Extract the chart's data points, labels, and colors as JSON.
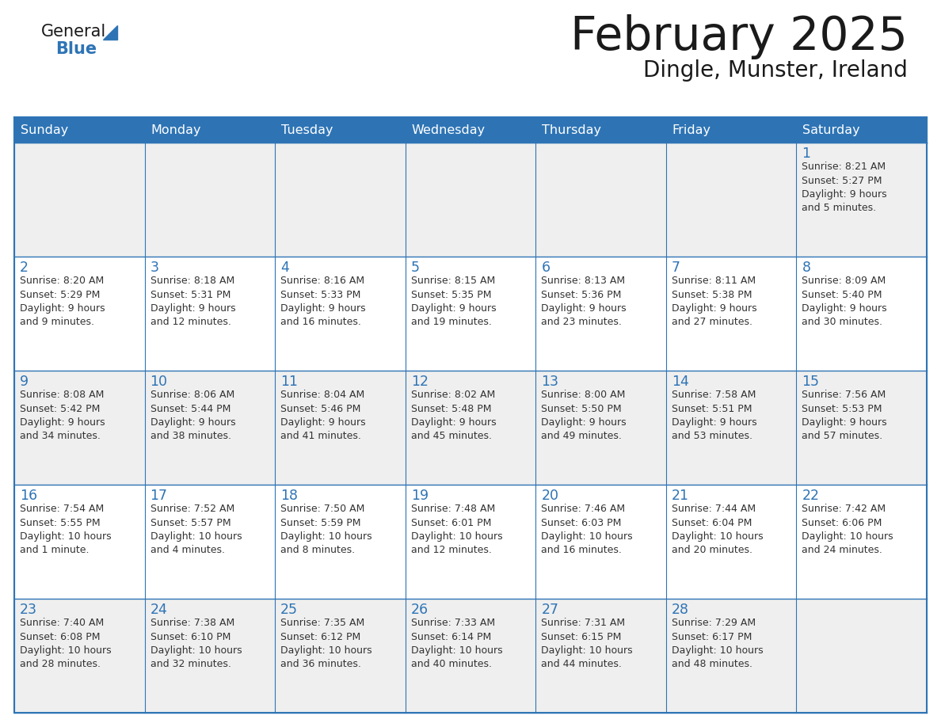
{
  "title": "February 2025",
  "subtitle": "Dingle, Munster, Ireland",
  "days_of_week": [
    "Sunday",
    "Monday",
    "Tuesday",
    "Wednesday",
    "Thursday",
    "Friday",
    "Saturday"
  ],
  "header_bg_color": "#2E74B5",
  "header_text_color": "#FFFFFF",
  "cell_bg_white": "#FFFFFF",
  "cell_bg_gray": "#F2F2F2",
  "grid_color": "#2E74B5",
  "title_color": "#1a1a1a",
  "subtitle_color": "#1a1a1a",
  "day_number_color": "#2E74B5",
  "cell_text_color": "#333333",
  "logo_general_color": "#1a1a1a",
  "logo_blue_color": "#2E74B5",
  "logo_triangle_color": "#2E74B5",
  "calendar_data": [
    [
      {
        "day": null,
        "text": ""
      },
      {
        "day": null,
        "text": ""
      },
      {
        "day": null,
        "text": ""
      },
      {
        "day": null,
        "text": ""
      },
      {
        "day": null,
        "text": ""
      },
      {
        "day": null,
        "text": ""
      },
      {
        "day": 1,
        "text": "Sunrise: 8:21 AM\nSunset: 5:27 PM\nDaylight: 9 hours\nand 5 minutes."
      }
    ],
    [
      {
        "day": 2,
        "text": "Sunrise: 8:20 AM\nSunset: 5:29 PM\nDaylight: 9 hours\nand 9 minutes."
      },
      {
        "day": 3,
        "text": "Sunrise: 8:18 AM\nSunset: 5:31 PM\nDaylight: 9 hours\nand 12 minutes."
      },
      {
        "day": 4,
        "text": "Sunrise: 8:16 AM\nSunset: 5:33 PM\nDaylight: 9 hours\nand 16 minutes."
      },
      {
        "day": 5,
        "text": "Sunrise: 8:15 AM\nSunset: 5:35 PM\nDaylight: 9 hours\nand 19 minutes."
      },
      {
        "day": 6,
        "text": "Sunrise: 8:13 AM\nSunset: 5:36 PM\nDaylight: 9 hours\nand 23 minutes."
      },
      {
        "day": 7,
        "text": "Sunrise: 8:11 AM\nSunset: 5:38 PM\nDaylight: 9 hours\nand 27 minutes."
      },
      {
        "day": 8,
        "text": "Sunrise: 8:09 AM\nSunset: 5:40 PM\nDaylight: 9 hours\nand 30 minutes."
      }
    ],
    [
      {
        "day": 9,
        "text": "Sunrise: 8:08 AM\nSunset: 5:42 PM\nDaylight: 9 hours\nand 34 minutes."
      },
      {
        "day": 10,
        "text": "Sunrise: 8:06 AM\nSunset: 5:44 PM\nDaylight: 9 hours\nand 38 minutes."
      },
      {
        "day": 11,
        "text": "Sunrise: 8:04 AM\nSunset: 5:46 PM\nDaylight: 9 hours\nand 41 minutes."
      },
      {
        "day": 12,
        "text": "Sunrise: 8:02 AM\nSunset: 5:48 PM\nDaylight: 9 hours\nand 45 minutes."
      },
      {
        "day": 13,
        "text": "Sunrise: 8:00 AM\nSunset: 5:50 PM\nDaylight: 9 hours\nand 49 minutes."
      },
      {
        "day": 14,
        "text": "Sunrise: 7:58 AM\nSunset: 5:51 PM\nDaylight: 9 hours\nand 53 minutes."
      },
      {
        "day": 15,
        "text": "Sunrise: 7:56 AM\nSunset: 5:53 PM\nDaylight: 9 hours\nand 57 minutes."
      }
    ],
    [
      {
        "day": 16,
        "text": "Sunrise: 7:54 AM\nSunset: 5:55 PM\nDaylight: 10 hours\nand 1 minute."
      },
      {
        "day": 17,
        "text": "Sunrise: 7:52 AM\nSunset: 5:57 PM\nDaylight: 10 hours\nand 4 minutes."
      },
      {
        "day": 18,
        "text": "Sunrise: 7:50 AM\nSunset: 5:59 PM\nDaylight: 10 hours\nand 8 minutes."
      },
      {
        "day": 19,
        "text": "Sunrise: 7:48 AM\nSunset: 6:01 PM\nDaylight: 10 hours\nand 12 minutes."
      },
      {
        "day": 20,
        "text": "Sunrise: 7:46 AM\nSunset: 6:03 PM\nDaylight: 10 hours\nand 16 minutes."
      },
      {
        "day": 21,
        "text": "Sunrise: 7:44 AM\nSunset: 6:04 PM\nDaylight: 10 hours\nand 20 minutes."
      },
      {
        "day": 22,
        "text": "Sunrise: 7:42 AM\nSunset: 6:06 PM\nDaylight: 10 hours\nand 24 minutes."
      }
    ],
    [
      {
        "day": 23,
        "text": "Sunrise: 7:40 AM\nSunset: 6:08 PM\nDaylight: 10 hours\nand 28 minutes."
      },
      {
        "day": 24,
        "text": "Sunrise: 7:38 AM\nSunset: 6:10 PM\nDaylight: 10 hours\nand 32 minutes."
      },
      {
        "day": 25,
        "text": "Sunrise: 7:35 AM\nSunset: 6:12 PM\nDaylight: 10 hours\nand 36 minutes."
      },
      {
        "day": 26,
        "text": "Sunrise: 7:33 AM\nSunset: 6:14 PM\nDaylight: 10 hours\nand 40 minutes."
      },
      {
        "day": 27,
        "text": "Sunrise: 7:31 AM\nSunset: 6:15 PM\nDaylight: 10 hours\nand 44 minutes."
      },
      {
        "day": 28,
        "text": "Sunrise: 7:29 AM\nSunset: 6:17 PM\nDaylight: 10 hours\nand 48 minutes."
      },
      {
        "day": null,
        "text": ""
      }
    ]
  ],
  "row_bg_colors": [
    "#EFEFEF",
    "#FFFFFF",
    "#EFEFEF",
    "#FFFFFF",
    "#EFEFEF"
  ]
}
